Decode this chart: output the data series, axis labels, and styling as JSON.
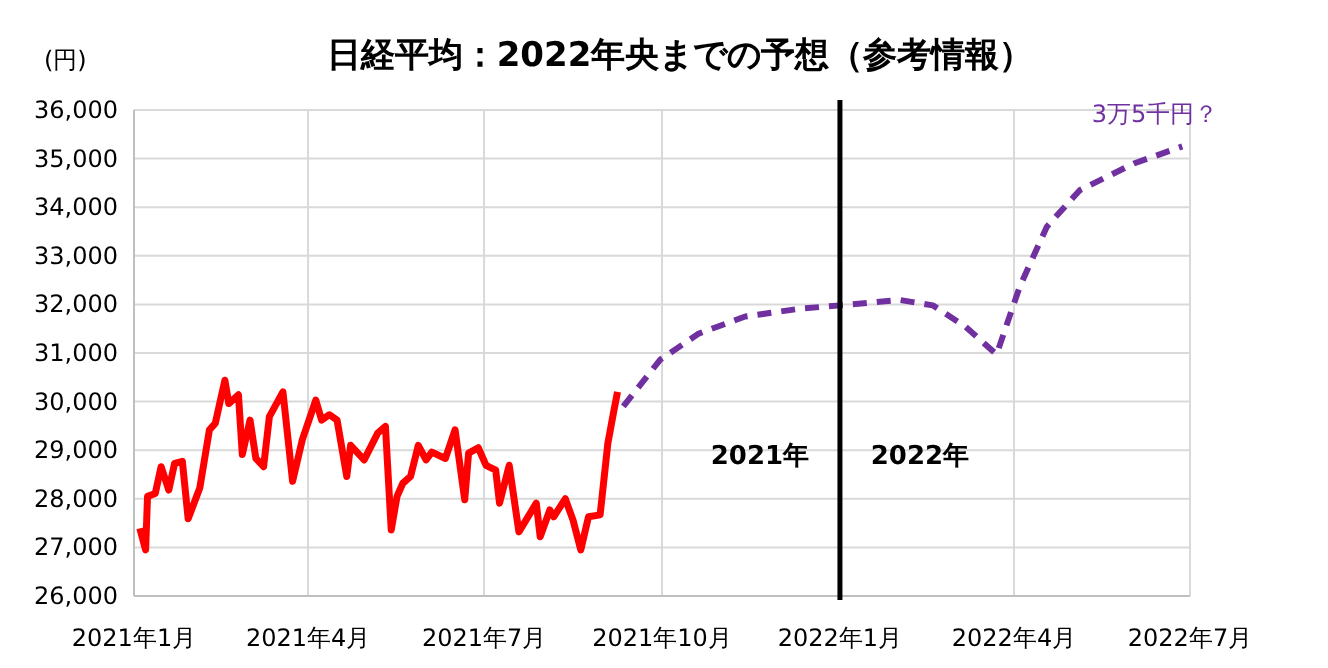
{
  "chart_data": {
    "type": "line",
    "title": "日経平均：2022年央までの予想（参考情報）",
    "ylabel": "(円)",
    "xlim": [
      "2021-01-01",
      "2022-07-01"
    ],
    "xticks": [
      {
        "value": "2021-01-01",
        "label": "2021年1月"
      },
      {
        "value": "2021-04-01",
        "label": "2021年4月"
      },
      {
        "value": "2021-07-01",
        "label": "2021年7月"
      },
      {
        "value": "2021-10-01",
        "label": "2021年10月"
      },
      {
        "value": "2022-01-01",
        "label": "2022年1月"
      },
      {
        "value": "2022-04-01",
        "label": "2022年4月"
      },
      {
        "value": "2022-07-01",
        "label": "2022年7月"
      }
    ],
    "ylim": [
      26000,
      36000
    ],
    "yticks": [
      {
        "value": 26000,
        "label": "26,000"
      },
      {
        "value": 27000,
        "label": "27,000"
      },
      {
        "value": 28000,
        "label": "28,000"
      },
      {
        "value": 29000,
        "label": "29,000"
      },
      {
        "value": 30000,
        "label": "30,000"
      },
      {
        "value": 31000,
        "label": "31,000"
      },
      {
        "value": 32000,
        "label": "32,000"
      },
      {
        "value": 33000,
        "label": "33,000"
      },
      {
        "value": 34000,
        "label": "34,000"
      },
      {
        "value": 35000,
        "label": "35,000"
      },
      {
        "value": 36000,
        "label": "36,000"
      }
    ],
    "grid": true,
    "series": [
      {
        "color": "#ff0000",
        "line_style": "solid",
        "x": [
          "2021-01-04",
          "2021-01-07",
          "2021-01-08",
          "2021-01-12",
          "2021-01-15",
          "2021-01-19",
          "2021-01-22",
          "2021-01-26",
          "2021-01-29",
          "2021-02-04",
          "2021-02-09",
          "2021-02-12",
          "2021-02-17",
          "2021-02-19",
          "2021-02-24",
          "2021-02-26",
          "2021-03-02",
          "2021-03-05",
          "2021-03-09",
          "2021-03-12",
          "2021-03-19",
          "2021-03-24",
          "2021-03-29",
          "2021-04-05",
          "2021-04-08",
          "2021-04-12",
          "2021-04-16",
          "2021-04-21",
          "2021-04-23",
          "2021-04-30",
          "2021-05-07",
          "2021-05-11",
          "2021-05-14",
          "2021-05-17",
          "2021-05-20",
          "2021-05-24",
          "2021-05-28",
          "2021-06-01",
          "2021-06-04",
          "2021-06-11",
          "2021-06-16",
          "2021-06-21",
          "2021-06-23",
          "2021-06-28",
          "2021-07-02",
          "2021-07-07",
          "2021-07-09",
          "2021-07-14",
          "2021-07-19",
          "2021-07-28",
          "2021-07-30",
          "2021-08-04",
          "2021-08-06",
          "2021-08-12",
          "2021-08-16",
          "2021-08-20",
          "2021-08-24",
          "2021-08-30",
          "2021-09-03",
          "2021-09-06",
          "2021-09-08"
        ],
        "values": [
          27390,
          26950,
          28050,
          28110,
          28660,
          28180,
          28730,
          28770,
          27590,
          28220,
          29420,
          29550,
          30440,
          29960,
          30140,
          28910,
          29620,
          28830,
          28660,
          29690,
          30200,
          28360,
          29210,
          30030,
          29620,
          29730,
          29620,
          28460,
          29100,
          28800,
          29350,
          29490,
          27360,
          28050,
          28320,
          28460,
          29100,
          28800,
          28960,
          28830,
          29420,
          27980,
          28940,
          29050,
          28690,
          28590,
          27910,
          28690,
          27320,
          27910,
          27220,
          27770,
          27630,
          28000,
          27560,
          26950,
          27630,
          27670,
          29140,
          29790,
          30200
        ]
      },
      {
        "color": "#7030a0",
        "line_style": "dashed",
        "x": [
          "2021-09-11",
          "2021-09-30",
          "2021-10-20",
          "2021-11-13",
          "2021-12-11",
          "2022-01-01",
          "2022-02-01",
          "2022-02-18",
          "2022-03-07",
          "2022-03-23",
          "2022-04-04",
          "2022-04-18",
          "2022-05-05",
          "2022-06-02",
          "2022-06-27"
        ],
        "values": [
          29900,
          30860,
          31400,
          31750,
          31910,
          31980,
          32090,
          31980,
          31540,
          30970,
          32370,
          33600,
          34350,
          34900,
          35250
        ]
      }
    ],
    "ref_lines": [
      {
        "axis": "x",
        "value": "2022-01-01",
        "color": "#000000"
      }
    ],
    "annotations": [
      "2021年",
      "2022年",
      {
        "text": "3万5千円？",
        "x": "2022-06-27",
        "y": 35250
      }
    ]
  }
}
